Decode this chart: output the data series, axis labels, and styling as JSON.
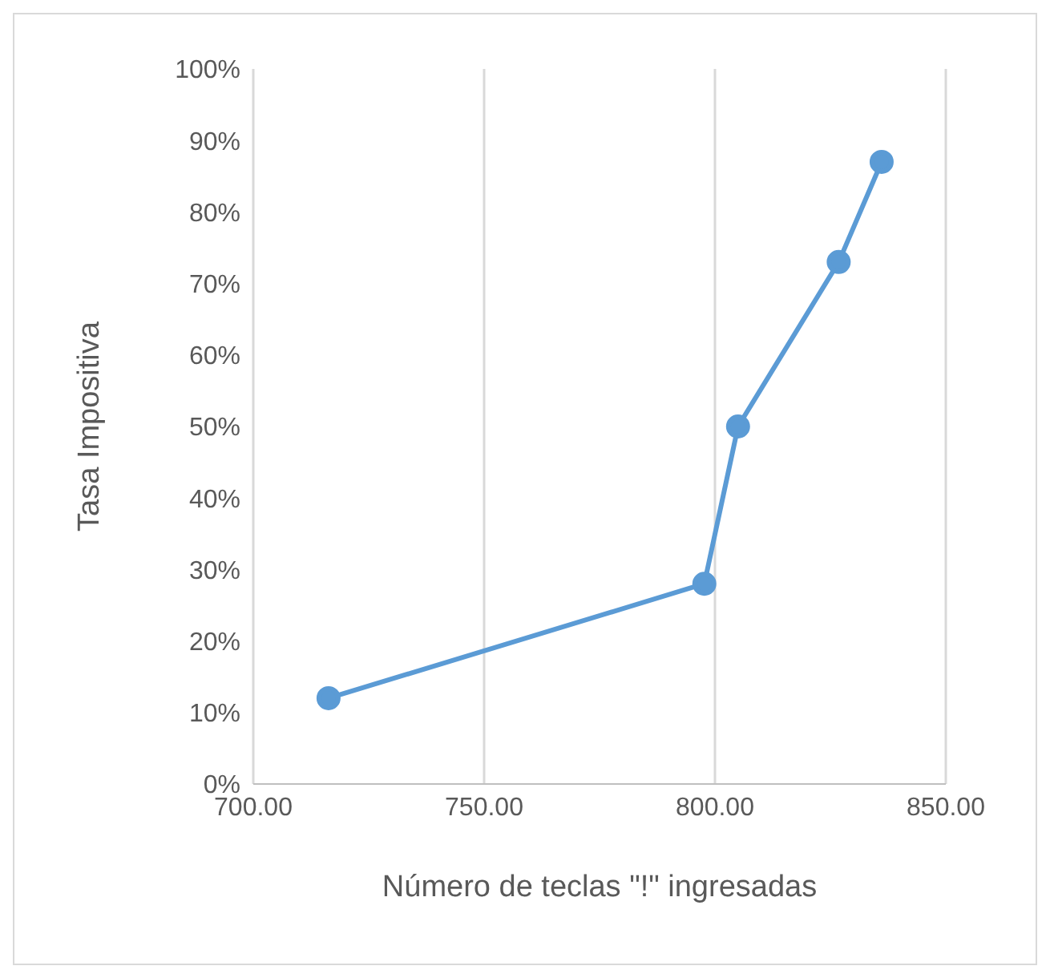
{
  "chart_data": {
    "type": "line",
    "xlabel": "Número de teclas \"!\" ingresadas",
    "ylabel": "Tasa Impositiva",
    "series": [
      {
        "color": "#5b9bd5",
        "x": [
          716.3,
          797.7,
          805,
          826.8,
          836.1
        ],
        "values": [
          12,
          28,
          50,
          73,
          87
        ]
      }
    ],
    "xlim": [
      700,
      850
    ],
    "xticks": [
      {
        "value": 700,
        "label": "700.00"
      },
      {
        "value": 750,
        "label": "750.00"
      },
      {
        "value": 800,
        "label": "800.00"
      },
      {
        "value": 850,
        "label": "850.00"
      }
    ],
    "ylim": [
      0,
      100
    ],
    "yticks": [
      {
        "value": 0,
        "label": "0%"
      },
      {
        "value": 10,
        "label": "10%"
      },
      {
        "value": 20,
        "label": "20%"
      },
      {
        "value": 30,
        "label": "30%"
      },
      {
        "value": 40,
        "label": "40%"
      },
      {
        "value": 50,
        "label": "50%"
      },
      {
        "value": 60,
        "label": "60%"
      },
      {
        "value": 70,
        "label": "70%"
      },
      {
        "value": 80,
        "label": "80%"
      },
      {
        "value": 90,
        "label": "90%"
      },
      {
        "value": 100,
        "label": "100%"
      }
    ],
    "grid": "x",
    "marker": "circle",
    "line_style": "solid"
  }
}
